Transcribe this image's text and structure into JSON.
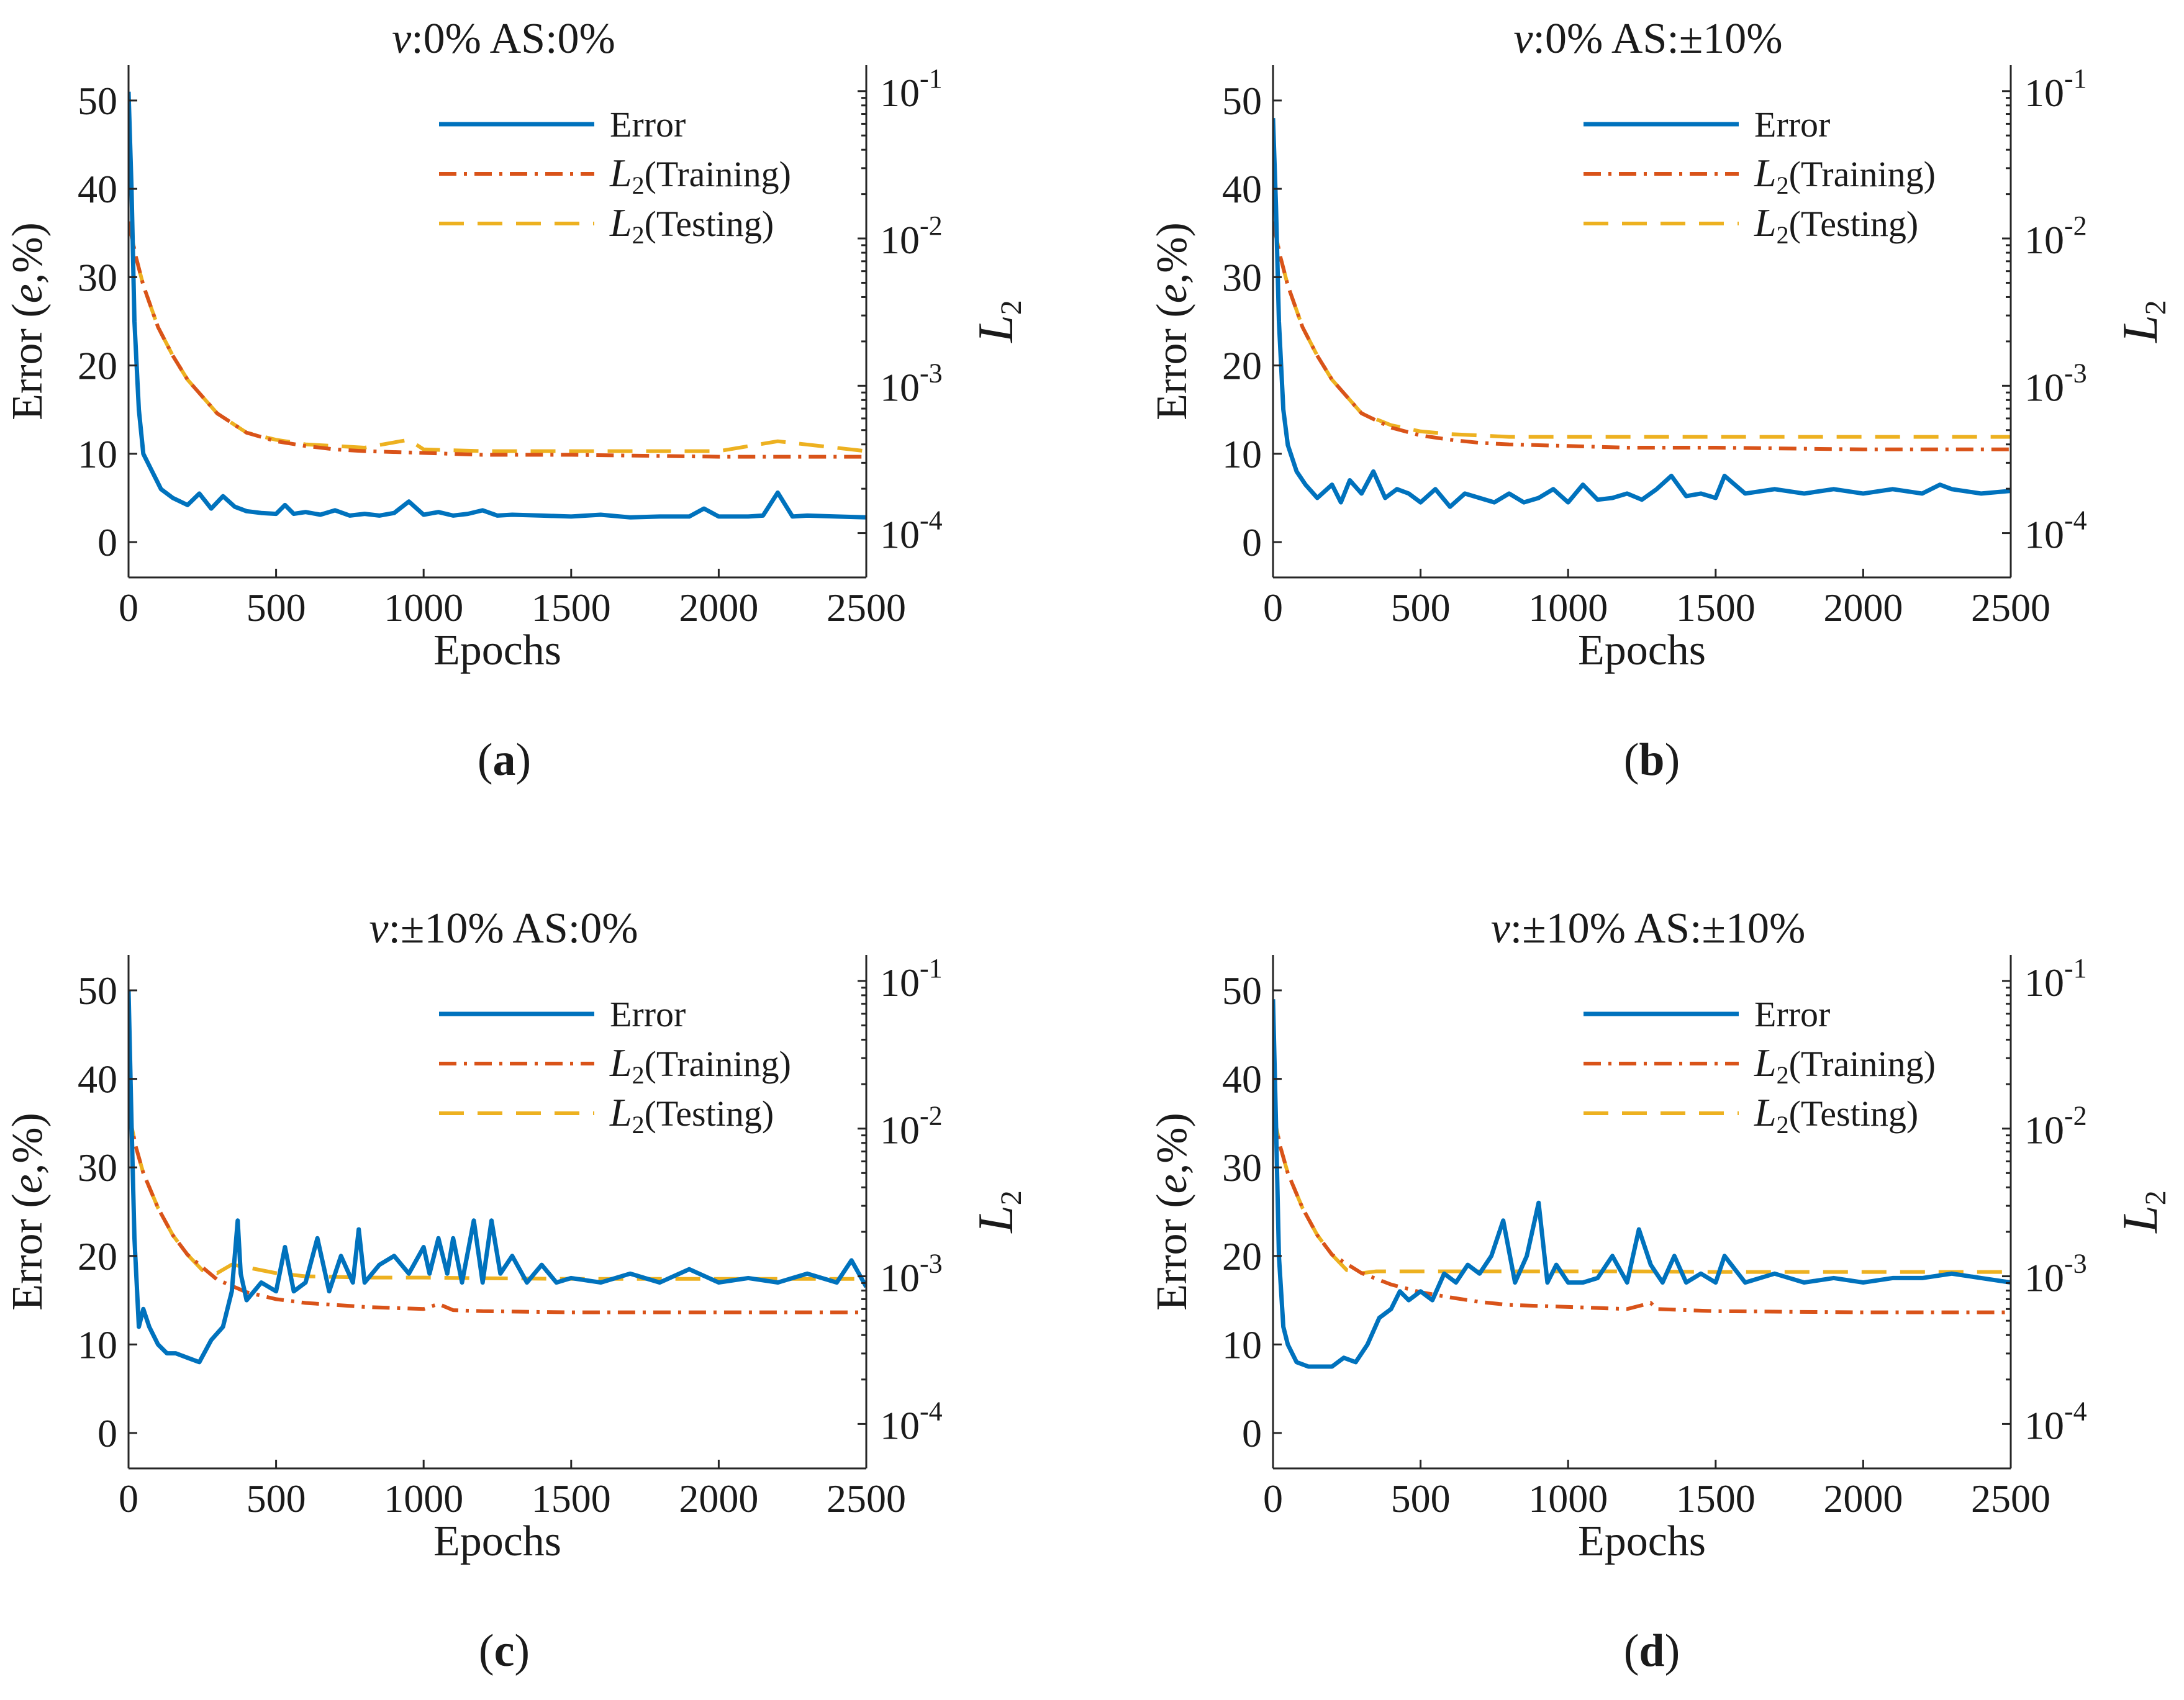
{
  "figure": {
    "panels": [
      "a",
      "b",
      "c",
      "d"
    ]
  },
  "chart_data": [
    {
      "type": "line",
      "panel": "(a)",
      "title": "v:0%    AS:0%",
      "xlabel": "Epochs",
      "ylabel": "Error (e,%)",
      "y2label": "L2",
      "xlim": [
        0,
        2500
      ],
      "ylim": [
        -4,
        54
      ],
      "y2lim": [
        5e-05,
        0.15
      ],
      "y2scale": "log",
      "xticks": [
        "0",
        "500",
        "1000",
        "1500",
        "2000",
        "2500"
      ],
      "yticks": [
        "0",
        "10",
        "20",
        "30",
        "40",
        "50"
      ],
      "y2ticks": [
        "10-4",
        "10-3",
        "10-2",
        "10-1"
      ],
      "legend": {
        "position": "top-right",
        "entries": [
          "Error",
          "L2(Training)",
          "L2(Testing)"
        ]
      },
      "series": [
        {
          "name": "Error",
          "axis": "left",
          "color": "#0072BD",
          "style": "solid",
          "x": [
            0,
            10,
            20,
            35,
            50,
            80,
            110,
            150,
            200,
            240,
            280,
            320,
            360,
            400,
            450,
            500,
            530,
            560,
            600,
            650,
            700,
            750,
            800,
            850,
            900,
            950,
            1000,
            1050,
            1100,
            1150,
            1200,
            1250,
            1300,
            1400,
            1500,
            1600,
            1700,
            1800,
            1900,
            1950,
            2000,
            2100,
            2150,
            2200,
            2250,
            2300,
            2400,
            2500
          ],
          "y": [
            51,
            40,
            25,
            15,
            10,
            8,
            6,
            5,
            4.2,
            5.5,
            3.8,
            5.2,
            4,
            3.5,
            3.3,
            3.2,
            4.2,
            3.2,
            3.4,
            3.1,
            3.6,
            3.0,
            3.2,
            3.0,
            3.3,
            4.6,
            3.1,
            3.4,
            3.0,
            3.2,
            3.6,
            3.0,
            3.1,
            3.0,
            2.9,
            3.1,
            2.8,
            2.9,
            2.9,
            3.8,
            2.9,
            2.9,
            3.0,
            5.6,
            2.9,
            3.0,
            2.9,
            2.8
          ]
        },
        {
          "name": "L2(Training)",
          "axis": "right",
          "color": "#D95319",
          "style": "dashdot",
          "x": [
            0,
            25,
            50,
            100,
            150,
            200,
            300,
            400,
            500,
            600,
            700,
            800,
            1000,
            1200,
            1500,
            2000,
            2500
          ],
          "y": [
            0.013,
            0.0075,
            0.0048,
            0.0025,
            0.0016,
            0.0011,
            0.00065,
            0.00048,
            0.00042,
            0.00039,
            0.00037,
            0.00036,
            0.00035,
            0.00034,
            0.00034,
            0.00033,
            0.00033
          ]
        },
        {
          "name": "L2(Testing)",
          "axis": "right",
          "color": "#EDB120",
          "style": "dashed",
          "x": [
            0,
            25,
            50,
            100,
            150,
            200,
            300,
            400,
            500,
            600,
            700,
            800,
            950,
            1000,
            1200,
            1500,
            2000,
            2200,
            2500
          ],
          "y": [
            0.013,
            0.0075,
            0.0048,
            0.0025,
            0.0016,
            0.0011,
            0.00065,
            0.00048,
            0.00043,
            0.0004,
            0.00039,
            0.00038,
            0.00043,
            0.00037,
            0.00036,
            0.00036,
            0.00036,
            0.00042,
            0.00036
          ]
        }
      ]
    },
    {
      "type": "line",
      "panel": "(b)",
      "title": "v:0%    AS:±10%",
      "xlabel": "Epochs",
      "ylabel": "Error (e,%)",
      "y2label": "L2",
      "xlim": [
        0,
        2500
      ],
      "ylim": [
        -4,
        54
      ],
      "y2lim": [
        5e-05,
        0.15
      ],
      "y2scale": "log",
      "xticks": [
        "0",
        "500",
        "1000",
        "1500",
        "2000",
        "2500"
      ],
      "yticks": [
        "0",
        "10",
        "20",
        "30",
        "40",
        "50"
      ],
      "y2ticks": [
        "10-4",
        "10-3",
        "10-2",
        "10-1"
      ],
      "legend": {
        "position": "top-right",
        "entries": [
          "Error",
          "L2(Training)",
          "L2(Testing)"
        ]
      },
      "series": [
        {
          "name": "Error",
          "axis": "left",
          "color": "#0072BD",
          "style": "solid",
          "x": [
            0,
            10,
            20,
            35,
            50,
            80,
            110,
            150,
            200,
            230,
            260,
            300,
            340,
            380,
            420,
            460,
            500,
            550,
            600,
            650,
            700,
            750,
            800,
            850,
            900,
            950,
            1000,
            1050,
            1100,
            1150,
            1200,
            1250,
            1300,
            1350,
            1400,
            1450,
            1500,
            1530,
            1600,
            1700,
            1800,
            1900,
            2000,
            2100,
            2200,
            2260,
            2300,
            2400,
            2500
          ],
          "y": [
            48,
            38,
            25,
            15,
            11,
            8,
            6.5,
            5,
            6.5,
            4.5,
            7,
            5.5,
            8,
            5,
            6,
            5.5,
            4.5,
            6,
            4,
            5.5,
            5,
            4.5,
            5.5,
            4.5,
            5,
            6,
            4.5,
            6.5,
            4.8,
            5,
            5.5,
            4.8,
            6,
            7.5,
            5.2,
            5.5,
            5,
            7.5,
            5.5,
            6,
            5.5,
            6,
            5.5,
            6,
            5.5,
            6.5,
            6,
            5.5,
            5.8
          ]
        },
        {
          "name": "L2(Training)",
          "axis": "right",
          "color": "#D95319",
          "style": "dashdot",
          "x": [
            0,
            25,
            50,
            100,
            150,
            200,
            300,
            400,
            500,
            600,
            700,
            800,
            1000,
            1200,
            1500,
            2000,
            2500
          ],
          "y": [
            0.013,
            0.0075,
            0.0048,
            0.0025,
            0.0016,
            0.0011,
            0.00065,
            0.00052,
            0.00046,
            0.00043,
            0.00041,
            0.0004,
            0.00039,
            0.00038,
            0.00038,
            0.00037,
            0.00037
          ]
        },
        {
          "name": "L2(Testing)",
          "axis": "right",
          "color": "#EDB120",
          "style": "dashed",
          "x": [
            0,
            25,
            50,
            100,
            150,
            200,
            300,
            400,
            500,
            600,
            700,
            800,
            1000,
            1200,
            1500,
            2000,
            2500
          ],
          "y": [
            0.013,
            0.0075,
            0.0048,
            0.0025,
            0.0016,
            0.0011,
            0.00065,
            0.00054,
            0.00049,
            0.00047,
            0.00046,
            0.00045,
            0.00045,
            0.00045,
            0.00045,
            0.00045,
            0.00045
          ]
        }
      ]
    },
    {
      "type": "line",
      "panel": "(c)",
      "title": "v:±10%    AS:0%",
      "xlabel": "Epochs",
      "ylabel": "Error (e,%)",
      "y2label": "L2",
      "xlim": [
        0,
        2500
      ],
      "ylim": [
        -4,
        54
      ],
      "y2lim": [
        5e-05,
        0.15
      ],
      "y2scale": "log",
      "xticks": [
        "0",
        "500",
        "1000",
        "1500",
        "2000",
        "2500"
      ],
      "yticks": [
        "0",
        "10",
        "20",
        "30",
        "40",
        "50"
      ],
      "y2ticks": [
        "10-4",
        "10-3",
        "10-2",
        "10-1"
      ],
      "legend": {
        "position": "top-right",
        "entries": [
          "Error",
          "L2(Training)",
          "L2(Testing)"
        ]
      },
      "series": [
        {
          "name": "Error",
          "axis": "left",
          "color": "#0072BD",
          "style": "solid",
          "x": [
            0,
            10,
            20,
            35,
            50,
            70,
            100,
            130,
            160,
            200,
            240,
            280,
            320,
            350,
            370,
            380,
            400,
            450,
            500,
            530,
            560,
            600,
            640,
            680,
            720,
            760,
            780,
            800,
            850,
            900,
            950,
            1000,
            1020,
            1050,
            1080,
            1100,
            1130,
            1170,
            1200,
            1230,
            1260,
            1300,
            1350,
            1400,
            1450,
            1500,
            1600,
            1700,
            1800,
            1900,
            2000,
            2100,
            2200,
            2300,
            2400,
            2450,
            2500
          ],
          "y": [
            50,
            35,
            22,
            12,
            14,
            12,
            10,
            9,
            9,
            8.5,
            8,
            10.5,
            12,
            16,
            24,
            18,
            15,
            17,
            16,
            21,
            16,
            17,
            22,
            16,
            20,
            17,
            23,
            17,
            19,
            20,
            18,
            21,
            18,
            22,
            18,
            22,
            17,
            24,
            17,
            24,
            18,
            20,
            17,
            19,
            17,
            17.5,
            17,
            18,
            17,
            18.5,
            17,
            17.5,
            17,
            18,
            17,
            19.5,
            16.5
          ]
        },
        {
          "name": "L2(Training)",
          "axis": "right",
          "color": "#D95319",
          "style": "dashdot",
          "x": [
            0,
            25,
            50,
            100,
            150,
            200,
            300,
            400,
            500,
            600,
            700,
            800,
            1000,
            1050,
            1100,
            1200,
            1500,
            2000,
            2500
          ],
          "y": [
            0.013,
            0.0075,
            0.005,
            0.0029,
            0.0019,
            0.0014,
            0.00095,
            0.00078,
            0.0007,
            0.00066,
            0.00064,
            0.00062,
            0.0006,
            0.00065,
            0.00059,
            0.00058,
            0.00057,
            0.00057,
            0.00057
          ]
        },
        {
          "name": "L2(Testing)",
          "axis": "right",
          "color": "#EDB120",
          "style": "dashed",
          "x": [
            0,
            25,
            50,
            100,
            150,
            200,
            250,
            300,
            350,
            400,
            500,
            600,
            800,
            1000,
            1200,
            1500,
            2000,
            2500
          ],
          "y": [
            0.013,
            0.0075,
            0.005,
            0.0029,
            0.0019,
            0.0014,
            0.0011,
            0.00105,
            0.0012,
            0.00115,
            0.00105,
            0.001,
            0.00098,
            0.00098,
            0.00097,
            0.00096,
            0.00096,
            0.00096
          ]
        }
      ]
    },
    {
      "type": "line",
      "panel": "(d)",
      "title": "v:±10%    AS:±10%",
      "xlabel": "Epochs",
      "ylabel": "Error (e,%)",
      "y2label": "L2",
      "xlim": [
        0,
        2500
      ],
      "ylim": [
        -4,
        54
      ],
      "y2lim": [
        5e-05,
        0.15
      ],
      "y2scale": "log",
      "xticks": [
        "0",
        "500",
        "1000",
        "1500",
        "2000",
        "2500"
      ],
      "yticks": [
        "0",
        "10",
        "20",
        "30",
        "40",
        "50"
      ],
      "y2ticks": [
        "10-4",
        "10-3",
        "10-2",
        "10-1"
      ],
      "legend": {
        "position": "top-right",
        "entries": [
          "Error",
          "L2(Training)",
          "L2(Testing)"
        ]
      },
      "series": [
        {
          "name": "Error",
          "axis": "left",
          "color": "#0072BD",
          "style": "solid",
          "x": [
            0,
            10,
            20,
            35,
            50,
            80,
            120,
            160,
            200,
            240,
            280,
            320,
            360,
            400,
            430,
            460,
            500,
            540,
            580,
            620,
            660,
            700,
            740,
            780,
            820,
            860,
            900,
            930,
            960,
            1000,
            1050,
            1100,
            1150,
            1200,
            1240,
            1280,
            1320,
            1360,
            1400,
            1450,
            1500,
            1530,
            1600,
            1700,
            1800,
            1900,
            2000,
            2100,
            2200,
            2300,
            2400,
            2500
          ],
          "y": [
            49,
            35,
            20,
            12,
            10,
            8,
            7.5,
            7.5,
            7.5,
            8.5,
            8,
            10,
            13,
            14,
            16,
            15,
            16,
            15,
            18,
            17,
            19,
            18,
            20,
            24,
            17,
            20,
            26,
            17,
            19,
            17,
            17,
            17.5,
            20,
            17,
            23,
            19,
            17,
            20,
            17,
            18,
            17,
            20,
            17,
            18,
            17,
            17.5,
            17,
            17.5,
            17.5,
            18,
            17.5,
            17
          ]
        },
        {
          "name": "L2(Training)",
          "axis": "right",
          "color": "#D95319",
          "style": "dashdot",
          "x": [
            0,
            25,
            50,
            100,
            150,
            200,
            300,
            400,
            500,
            600,
            700,
            800,
            1000,
            1200,
            1280,
            1300,
            1500,
            2000,
            2500
          ],
          "y": [
            0.013,
            0.0075,
            0.005,
            0.0029,
            0.0019,
            0.0014,
            0.00105,
            0.00088,
            0.00078,
            0.00072,
            0.00067,
            0.00064,
            0.00062,
            0.0006,
            0.00066,
            0.0006,
            0.00058,
            0.00057,
            0.00057
          ]
        },
        {
          "name": "L2(Testing)",
          "axis": "right",
          "color": "#EDB120",
          "style": "dashed",
          "x": [
            0,
            25,
            50,
            100,
            150,
            200,
            250,
            300,
            350,
            400,
            500,
            600,
            800,
            1000,
            1200,
            1500,
            2000,
            2500
          ],
          "y": [
            0.013,
            0.0075,
            0.005,
            0.0029,
            0.0019,
            0.0014,
            0.0011,
            0.00105,
            0.00108,
            0.00108,
            0.00108,
            0.00108,
            0.00108,
            0.00108,
            0.00108,
            0.00107,
            0.00107,
            0.00107
          ]
        }
      ]
    }
  ]
}
